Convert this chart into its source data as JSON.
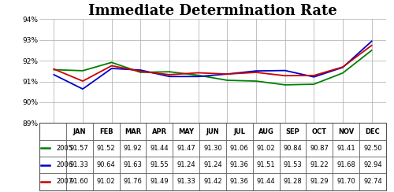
{
  "title": "Immediate Determination Rate",
  "months": [
    "JAN",
    "FEB",
    "MAR",
    "APR",
    "MAY",
    "JUN",
    "JUL",
    "AUG",
    "SEP",
    "OCT",
    "NOV",
    "DEC"
  ],
  "series": [
    {
      "label": "2005",
      "color": "#008000",
      "values": [
        91.57,
        91.52,
        91.92,
        91.44,
        91.47,
        91.3,
        91.06,
        91.02,
        90.84,
        90.87,
        91.41,
        92.5
      ]
    },
    {
      "label": "2006",
      "color": "#0000CC",
      "values": [
        91.33,
        90.64,
        91.63,
        91.55,
        91.24,
        91.24,
        91.36,
        91.51,
        91.53,
        91.22,
        91.68,
        92.94
      ]
    },
    {
      "label": "2007",
      "color": "#CC0000",
      "values": [
        91.6,
        91.02,
        91.76,
        91.49,
        91.33,
        91.42,
        91.36,
        91.44,
        91.28,
        91.29,
        91.7,
        92.74
      ]
    }
  ],
  "ylim": [
    89,
    94
  ],
  "yticks": [
    89,
    90,
    91,
    92,
    93,
    94
  ],
  "ytick_labels": [
    "89%",
    "90%",
    "91%",
    "92%",
    "93%",
    "94%"
  ],
  "table_rows": [
    [
      "2005",
      "91.57",
      "91.52",
      "91.92",
      "91.44",
      "91.47",
      "91.30",
      "91.06",
      "91.02",
      "90.84",
      "90.87",
      "91.41",
      "92.50"
    ],
    [
      "2006",
      "91.33",
      "90.64",
      "91.63",
      "91.55",
      "91.24",
      "91.24",
      "91.36",
      "91.51",
      "91.53",
      "91.22",
      "91.68",
      "92.94"
    ],
    [
      "2007",
      "91.60",
      "91.02",
      "91.76",
      "91.49",
      "91.33",
      "91.42",
      "91.36",
      "91.44",
      "91.28",
      "91.29",
      "91.70",
      "92.74"
    ]
  ],
  "row_colors": [
    "#008000",
    "#0000CC",
    "#CC0000"
  ],
  "background_color": "#ffffff",
  "title_fontsize": 13,
  "grid_color": "#aaaaaa",
  "border_color": "#555555"
}
